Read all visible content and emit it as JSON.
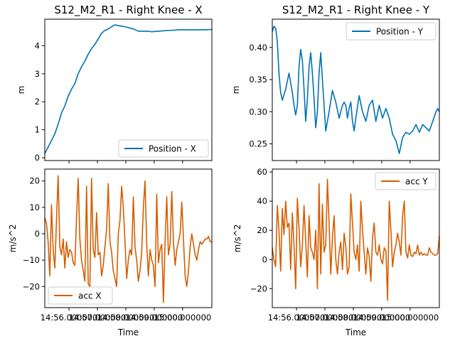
{
  "colors": {
    "position": "#0072b2",
    "acc": "#d55e00",
    "background": "#ffffff"
  },
  "chart_data": [
    {
      "type": "line",
      "title": "S12_M2_R1 - Right Knee - X",
      "xlabel": "",
      "ylabel": "m",
      "xlim": [
        0,
        100
      ],
      "ylim": [
        -0.1,
        4.95
      ],
      "yticks": [
        0,
        1,
        2,
        3,
        4
      ],
      "ytick_labels": [
        "0",
        "1",
        "2",
        "3",
        "4"
      ],
      "xtick_labels": [],
      "legend": "lower-right",
      "series": [
        {
          "name": "Position - X",
          "x": [
            0,
            3,
            6,
            8,
            10,
            12,
            14,
            16,
            18,
            20,
            22,
            24,
            26,
            28,
            30,
            32,
            34,
            36,
            38,
            40,
            42,
            44,
            46,
            48,
            50,
            52,
            54,
            56,
            58,
            60,
            62,
            64,
            66,
            68,
            70,
            72,
            74,
            76,
            78,
            80,
            82,
            84,
            86,
            88,
            90,
            92,
            94,
            96,
            98,
            100
          ],
          "values": [
            0.15,
            0.5,
            0.85,
            1.2,
            1.6,
            1.85,
            2.2,
            2.45,
            2.65,
            3.0,
            3.25,
            3.45,
            3.7,
            3.9,
            4.05,
            4.25,
            4.45,
            4.55,
            4.6,
            4.68,
            4.75,
            4.72,
            4.7,
            4.68,
            4.65,
            4.62,
            4.58,
            4.52,
            4.52,
            4.52,
            4.52,
            4.5,
            4.51,
            4.52,
            4.53,
            4.54,
            4.55,
            4.55,
            4.56,
            4.57,
            4.57,
            4.57,
            4.57,
            4.57,
            4.57,
            4.57,
            4.57,
            4.57,
            4.58,
            4.58
          ]
        }
      ]
    },
    {
      "type": "line",
      "title": "S12_M2_R1 - Right Knee - Y",
      "xlabel": "",
      "ylabel": "m",
      "xlim": [
        0,
        100
      ],
      "ylim": [
        0.224,
        0.444
      ],
      "yticks": [
        0.25,
        0.3,
        0.35,
        0.4
      ],
      "ytick_labels": [
        "0.25",
        "0.30",
        "0.35",
        "0.40"
      ],
      "xtick_labels": [],
      "legend": "upper-right",
      "series": [
        {
          "name": "Position - Y",
          "x": [
            0,
            1,
            2,
            3,
            4,
            5,
            6,
            8,
            10,
            12,
            13,
            14,
            15,
            16,
            17,
            18,
            19,
            20,
            21,
            22,
            23,
            24,
            25,
            26,
            27,
            28,
            29,
            30,
            32,
            34,
            36,
            38,
            40,
            41,
            42,
            43,
            44,
            45,
            46,
            47,
            48,
            49,
            50,
            52,
            54,
            56,
            58,
            60,
            62,
            64,
            66,
            68,
            70,
            72,
            74,
            75,
            76,
            78,
            80,
            82,
            84,
            86,
            88,
            90,
            92,
            94,
            96,
            98,
            99,
            100
          ],
          "values": [
            0.425,
            0.433,
            0.43,
            0.41,
            0.36,
            0.33,
            0.318,
            0.335,
            0.36,
            0.33,
            0.31,
            0.295,
            0.31,
            0.37,
            0.397,
            0.38,
            0.335,
            0.285,
            0.32,
            0.37,
            0.392,
            0.36,
            0.32,
            0.275,
            0.3,
            0.36,
            0.392,
            0.35,
            0.27,
            0.3,
            0.333,
            0.315,
            0.29,
            0.3,
            0.31,
            0.315,
            0.31,
            0.29,
            0.305,
            0.315,
            0.285,
            0.27,
            0.29,
            0.325,
            0.3,
            0.285,
            0.31,
            0.318,
            0.285,
            0.31,
            0.29,
            0.305,
            0.29,
            0.265,
            0.255,
            0.245,
            0.235,
            0.26,
            0.268,
            0.265,
            0.27,
            0.28,
            0.268,
            0.28,
            0.275,
            0.27,
            0.285,
            0.3,
            0.305,
            0.3
          ]
        }
      ]
    },
    {
      "type": "line",
      "title": "",
      "xlabel": "Time",
      "ylabel": "m/s^2",
      "xlim": [
        0,
        100
      ],
      "ylim": [
        -28,
        24.5
      ],
      "yticks": [
        -20,
        -10,
        0,
        10,
        20
      ],
      "ytick_labels": [
        "−20",
        "−10",
        "0",
        "10",
        "20"
      ],
      "xticks": [
        14.5,
        31.5,
        48.5,
        65.5,
        82.5
      ],
      "xtick_labels": [
        "14:56.000000",
        "14:57.000000",
        "14:58.000000",
        "14:59.000000",
        "15:00.000000"
      ],
      "legend": "lower-left",
      "series": [
        {
          "name": "acc X",
          "x": [
            0,
            1,
            2,
            3,
            4,
            5,
            6,
            7,
            8,
            9,
            10,
            11,
            12,
            13,
            14,
            15,
            16,
            17,
            18,
            19,
            20,
            21,
            22,
            23,
            24,
            25,
            26,
            27,
            28,
            29,
            30,
            31,
            32,
            33,
            34,
            35,
            36,
            37,
            38,
            39,
            40,
            41,
            42,
            43,
            44,
            45,
            46,
            47,
            48,
            49,
            50,
            51,
            52,
            53,
            54,
            55,
            56,
            57,
            58,
            59,
            60,
            61,
            62,
            63,
            64,
            65,
            66,
            67,
            68,
            69,
            70,
            71,
            72,
            73,
            74,
            75,
            76,
            77,
            78,
            79,
            80,
            81,
            82,
            83,
            84,
            85,
            86,
            87,
            88,
            89,
            90,
            91,
            92,
            93,
            94,
            95,
            96,
            97,
            98,
            99,
            100
          ],
          "values": [
            6,
            4,
            -3,
            -16,
            11,
            -6,
            -13,
            5,
            22,
            -5,
            -8,
            -2,
            -13,
            -3,
            -9,
            -6,
            -7,
            -11,
            -12,
            6,
            21,
            -2,
            -10,
            -14,
            -18,
            18,
            -19,
            -20,
            21,
            -6,
            -9,
            8,
            -8,
            -7,
            -16,
            -12,
            -5,
            2,
            19,
            -3,
            -7,
            -14,
            -17,
            -20,
            0,
            5,
            18,
            10,
            -3,
            -17,
            -10,
            -6,
            -8,
            14,
            -5,
            -10,
            -18,
            -14,
            -7,
            10,
            20,
            -4,
            -16,
            -6,
            -10,
            -12,
            -20,
            15,
            -11,
            -6,
            -4,
            -26,
            -3,
            14,
            -8,
            -4,
            16,
            -3,
            -12,
            -6,
            -3,
            0,
            12,
            -2,
            -16,
            -20,
            -14,
            -5,
            0,
            -4,
            -8,
            -10,
            -6,
            -3,
            -4,
            -3,
            -2,
            -2,
            -1,
            -3,
            -3
          ]
        }
      ]
    },
    {
      "type": "line",
      "title": "",
      "xlabel": "Time",
      "ylabel": "m/s^2",
      "xlim": [
        0,
        100
      ],
      "ylim": [
        -33,
        62
      ],
      "yticks": [
        -20,
        0,
        20,
        40,
        60
      ],
      "ytick_labels": [
        "−20",
        "0",
        "20",
        "40",
        "60"
      ],
      "xticks": [
        14.5,
        31.5,
        48.5,
        65.5,
        82.5
      ],
      "xtick_labels": [
        "14:56.000000",
        "14:57.000000",
        "14:58.000000",
        "14:59.000000",
        "15:00.000000"
      ],
      "legend": "upper-right",
      "series": [
        {
          "name": "acc Y",
          "x": [
            0,
            1,
            2,
            3,
            4,
            5,
            6,
            7,
            8,
            9,
            10,
            11,
            12,
            13,
            14,
            15,
            16,
            17,
            18,
            19,
            20,
            21,
            22,
            23,
            24,
            25,
            26,
            27,
            28,
            29,
            30,
            31,
            32,
            33,
            34,
            35,
            36,
            37,
            38,
            39,
            40,
            41,
            42,
            43,
            44,
            45,
            46,
            47,
            48,
            49,
            50,
            51,
            52,
            53,
            54,
            55,
            56,
            57,
            58,
            59,
            60,
            61,
            62,
            63,
            64,
            65,
            66,
            67,
            68,
            69,
            70,
            71,
            72,
            73,
            74,
            75,
            76,
            77,
            78,
            79,
            80,
            81,
            82,
            83,
            84,
            85,
            86,
            87,
            88,
            89,
            90,
            91,
            92,
            93,
            94,
            95,
            96,
            97,
            98,
            99,
            100
          ],
          "values": [
            8,
            0,
            -5,
            37,
            20,
            -8,
            35,
            17,
            40,
            22,
            25,
            -7,
            32,
            10,
            -20,
            42,
            22,
            -5,
            10,
            37,
            12,
            -12,
            30,
            8,
            5,
            0,
            20,
            -20,
            52,
            -10,
            38,
            5,
            10,
            55,
            25,
            -10,
            15,
            30,
            0,
            -10,
            5,
            12,
            -7,
            18,
            9,
            -10,
            -5,
            45,
            25,
            5,
            0,
            10,
            -8,
            40,
            20,
            5,
            -10,
            8,
            2,
            -15,
            15,
            25,
            5,
            3,
            10,
            0,
            -3,
            8,
            6,
            -28,
            40,
            20,
            -5,
            5,
            10,
            18,
            12,
            3,
            30,
            40,
            5,
            1,
            10,
            3,
            2,
            5,
            4,
            10,
            3,
            5,
            3,
            4,
            3,
            3,
            8,
            5,
            4,
            3,
            3,
            4,
            16
          ]
        }
      ]
    }
  ]
}
